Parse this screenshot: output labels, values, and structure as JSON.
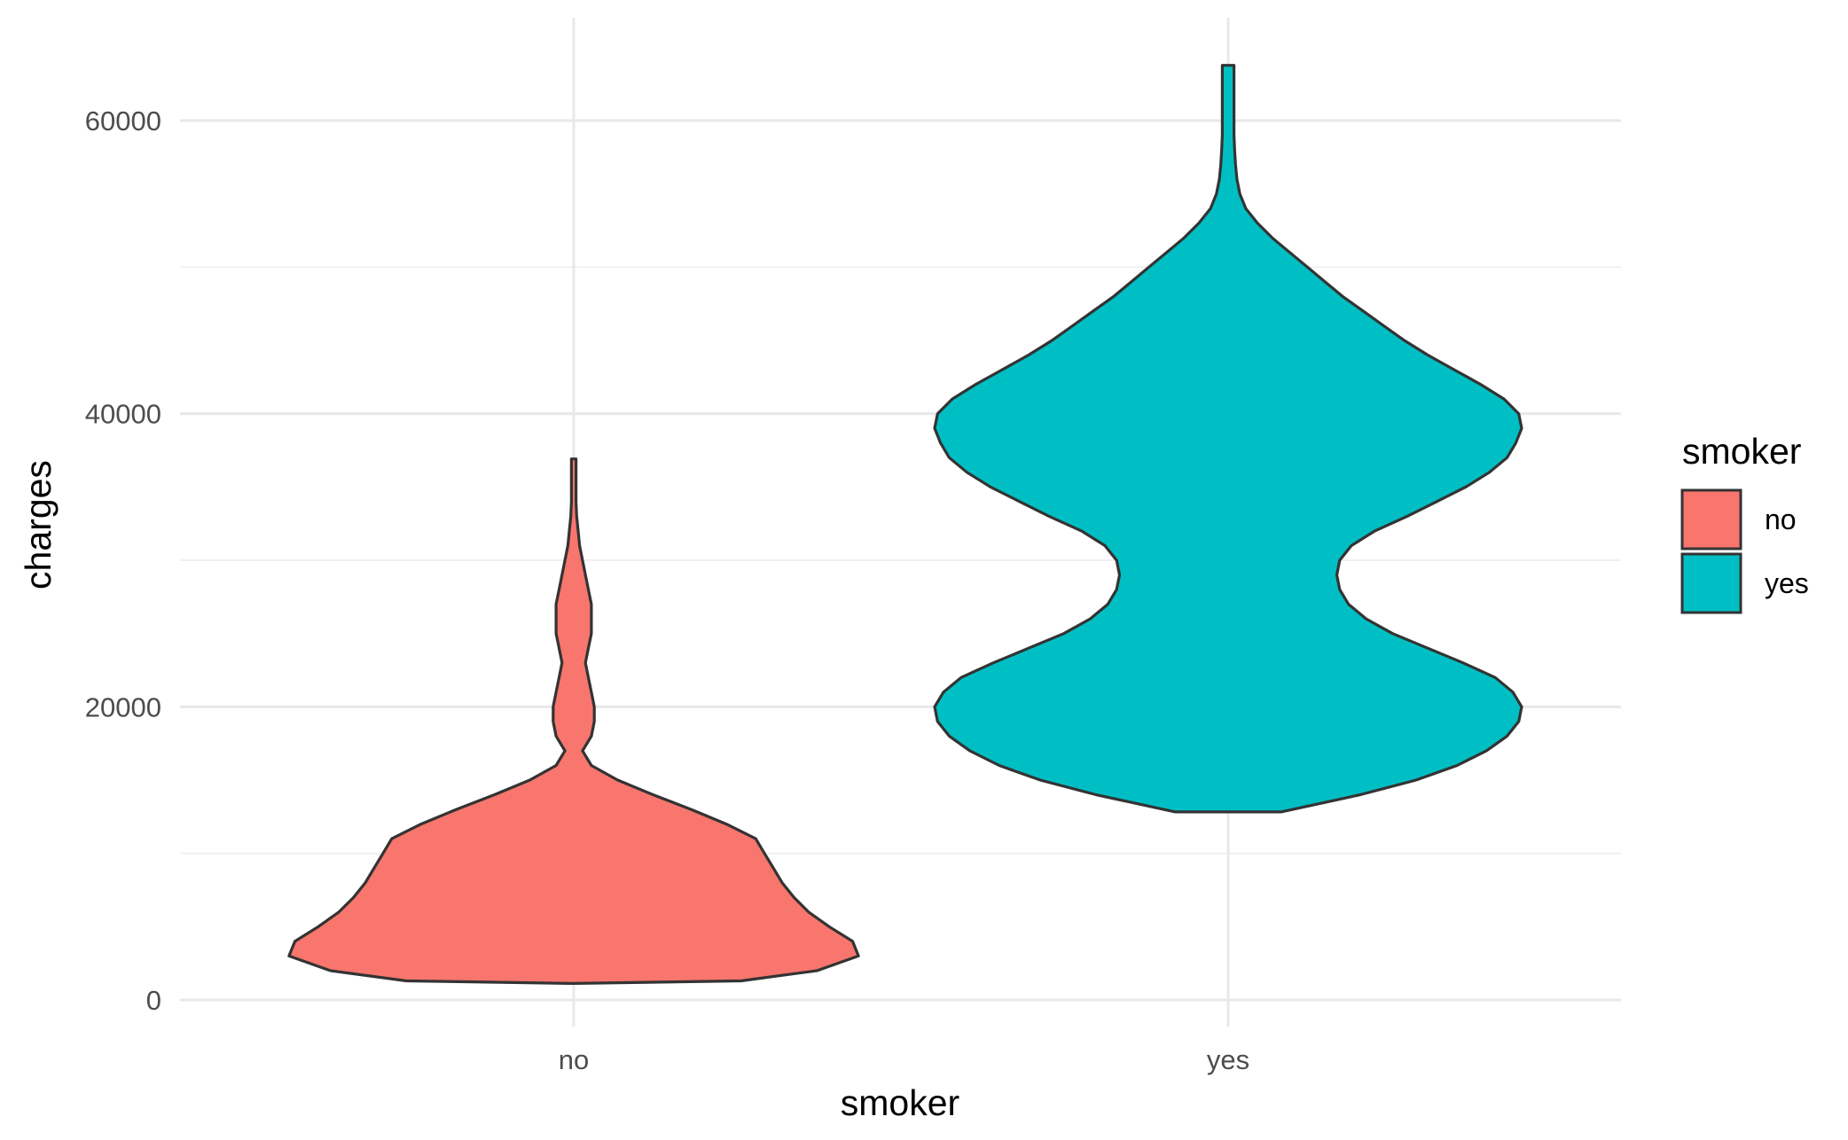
{
  "chart_data": {
    "type": "violin",
    "xlabel": "smoker",
    "ylabel": "charges",
    "categories": [
      "no",
      "yes"
    ],
    "ylim": [
      0,
      65000
    ],
    "yticks": [
      0,
      20000,
      40000,
      60000
    ],
    "grid": true,
    "legend": {
      "title": "smoker",
      "placement": "right",
      "entries": [
        {
          "label": "no",
          "color": "#F8766D"
        },
        {
          "label": "yes",
          "color": "#00BFC4"
        }
      ]
    },
    "series": [
      {
        "name": "no",
        "color": "#F8766D",
        "min": 1122,
        "max": 36911,
        "density_profile": [
          [
            1122,
            0.0
          ],
          [
            1300,
            0.57
          ],
          [
            2000,
            0.83
          ],
          [
            3000,
            0.97
          ],
          [
            4000,
            0.95
          ],
          [
            5000,
            0.87
          ],
          [
            6000,
            0.8
          ],
          [
            7000,
            0.75
          ],
          [
            8000,
            0.71
          ],
          [
            9000,
            0.68
          ],
          [
            10000,
            0.65
          ],
          [
            11000,
            0.62
          ],
          [
            12000,
            0.52
          ],
          [
            13000,
            0.4
          ],
          [
            14000,
            0.27
          ],
          [
            15000,
            0.15
          ],
          [
            16000,
            0.06
          ],
          [
            17000,
            0.03
          ],
          [
            18000,
            0.06
          ],
          [
            19000,
            0.07
          ],
          [
            20000,
            0.07
          ],
          [
            21000,
            0.06
          ],
          [
            22000,
            0.05
          ],
          [
            23000,
            0.04
          ],
          [
            24000,
            0.05
          ],
          [
            25000,
            0.06
          ],
          [
            26000,
            0.06
          ],
          [
            27000,
            0.06
          ],
          [
            28000,
            0.05
          ],
          [
            29000,
            0.04
          ],
          [
            30000,
            0.03
          ],
          [
            31000,
            0.02
          ],
          [
            32000,
            0.015
          ],
          [
            33000,
            0.01
          ],
          [
            34000,
            0.008
          ],
          [
            35000,
            0.008
          ],
          [
            36000,
            0.008
          ],
          [
            36911,
            0.008
          ]
        ]
      },
      {
        "name": "yes",
        "color": "#00BFC4",
        "min": 12829,
        "max": 63770,
        "density_profile": [
          [
            12829,
            0.18
          ],
          [
            14000,
            0.45
          ],
          [
            15000,
            0.64
          ],
          [
            16000,
            0.78
          ],
          [
            17000,
            0.88
          ],
          [
            18000,
            0.95
          ],
          [
            19000,
            0.99
          ],
          [
            20000,
            1.0
          ],
          [
            21000,
            0.97
          ],
          [
            22000,
            0.91
          ],
          [
            23000,
            0.8
          ],
          [
            24000,
            0.68
          ],
          [
            25000,
            0.56
          ],
          [
            26000,
            0.47
          ],
          [
            27000,
            0.41
          ],
          [
            28000,
            0.38
          ],
          [
            29000,
            0.37
          ],
          [
            30000,
            0.38
          ],
          [
            31000,
            0.42
          ],
          [
            32000,
            0.5
          ],
          [
            33000,
            0.61
          ],
          [
            34000,
            0.71
          ],
          [
            35000,
            0.81
          ],
          [
            36000,
            0.89
          ],
          [
            37000,
            0.95
          ],
          [
            38000,
            0.98
          ],
          [
            39000,
            1.0
          ],
          [
            40000,
            0.99
          ],
          [
            41000,
            0.94
          ],
          [
            42000,
            0.86
          ],
          [
            43000,
            0.77
          ],
          [
            44000,
            0.68
          ],
          [
            45000,
            0.6
          ],
          [
            46000,
            0.53
          ],
          [
            47000,
            0.46
          ],
          [
            48000,
            0.39
          ],
          [
            49000,
            0.33
          ],
          [
            50000,
            0.27
          ],
          [
            51000,
            0.21
          ],
          [
            52000,
            0.15
          ],
          [
            53000,
            0.1
          ],
          [
            54000,
            0.06
          ],
          [
            55000,
            0.04
          ],
          [
            56000,
            0.03
          ],
          [
            57000,
            0.025
          ],
          [
            58000,
            0.022
          ],
          [
            59000,
            0.02
          ],
          [
            60000,
            0.02
          ],
          [
            61000,
            0.02
          ],
          [
            62000,
            0.02
          ],
          [
            63000,
            0.02
          ],
          [
            63770,
            0.02
          ]
        ]
      }
    ]
  }
}
